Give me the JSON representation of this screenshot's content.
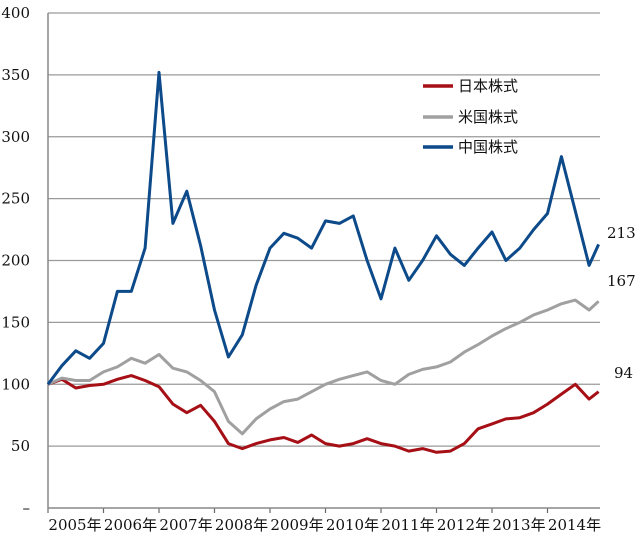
{
  "chart_data": {
    "type": "line",
    "title": "",
    "xlabel": "",
    "ylabel": "",
    "ylim": [
      0,
      400
    ],
    "yticks": [
      0,
      50,
      100,
      150,
      200,
      250,
      300,
      350,
      400
    ],
    "ytick_labels": [
      "–",
      "50",
      "100",
      "150",
      "200",
      "250",
      "300",
      "350",
      "400"
    ],
    "xtick_labels": [
      "2005年",
      "2006年",
      "2007年",
      "2008年",
      "2009年",
      "2010年",
      "2011年",
      "2012年",
      "2013年",
      "2014年"
    ],
    "grid": "horizontal",
    "legend_position": "upper right (inside)",
    "x_start": "2005-01",
    "x_end": "2014-12",
    "frequency": "monthly (sampled here quarterly-ish)",
    "x": [
      2005.0,
      2005.25,
      2005.5,
      2005.75,
      2006.0,
      2006.25,
      2006.5,
      2006.75,
      2007.0,
      2007.25,
      2007.5,
      2007.75,
      2008.0,
      2008.25,
      2008.5,
      2008.75,
      2009.0,
      2009.25,
      2009.5,
      2009.75,
      2010.0,
      2010.25,
      2010.5,
      2010.75,
      2011.0,
      2011.25,
      2011.5,
      2011.75,
      2012.0,
      2012.25,
      2012.5,
      2012.75,
      2013.0,
      2013.25,
      2013.5,
      2013.75,
      2014.0,
      2014.25,
      2014.5,
      2014.75,
      2014.92
    ],
    "series": [
      {
        "name": "日本株式",
        "color": "#a50f15",
        "values": [
          100,
          104,
          97,
          99,
          100,
          104,
          107,
          103,
          98,
          84,
          77,
          83,
          70,
          52,
          48,
          52,
          55,
          57,
          53,
          59,
          52,
          50,
          52,
          56,
          52,
          50,
          46,
          48,
          45,
          46,
          52,
          64,
          68,
          72,
          73,
          77,
          84,
          92,
          100,
          88,
          94
        ],
        "end_label": "94"
      },
      {
        "name": "米国株式",
        "color": "#a0a0a0",
        "values": [
          100,
          105,
          103,
          103,
          110,
          114,
          121,
          117,
          124,
          113,
          110,
          103,
          94,
          70,
          60,
          72,
          80,
          86,
          88,
          94,
          100,
          104,
          107,
          110,
          103,
          100,
          108,
          112,
          114,
          118,
          126,
          132,
          139,
          145,
          150,
          156,
          160,
          165,
          168,
          160,
          167
        ],
        "end_label": "167"
      },
      {
        "name": "中国株式",
        "color": "#0c4a8a",
        "values": [
          100,
          115,
          127,
          121,
          133,
          175,
          175,
          210,
          352,
          230,
          256,
          212,
          160,
          122,
          140,
          180,
          210,
          222,
          218,
          210,
          232,
          230,
          236,
          200,
          169,
          210,
          184,
          200,
          220,
          205,
          196,
          210,
          223,
          200,
          210,
          225,
          238,
          284,
          240,
          196,
          213
        ],
        "end_label": "213"
      }
    ]
  },
  "legend": {
    "items": [
      {
        "label": "日本株式",
        "color": "#a50f15"
      },
      {
        "label": "米国株式",
        "color": "#a0a0a0"
      },
      {
        "label": "中国株式",
        "color": "#0c4a8a"
      }
    ]
  },
  "end_labels": {
    "china": "213",
    "us": "167",
    "japan": "94"
  }
}
